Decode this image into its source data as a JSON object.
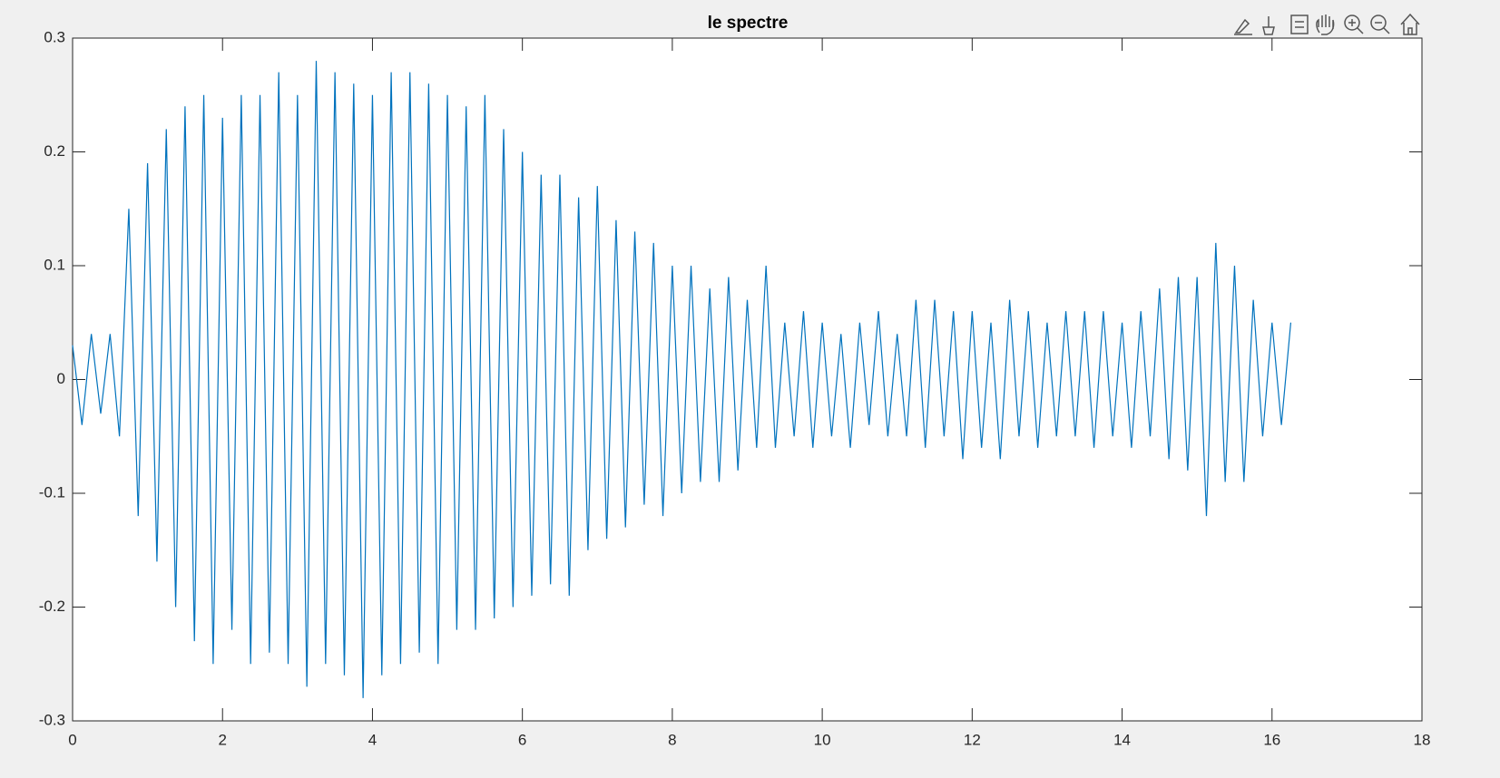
{
  "chart_data": {
    "type": "line",
    "title": "le spectre",
    "color": "#0072bd",
    "x": [
      0,
      0.125,
      0.25,
      0.375,
      0.5,
      0.625,
      0.75,
      0.875,
      1,
      1.125,
      1.25,
      1.375,
      1.5,
      1.625,
      1.75,
      1.875,
      2,
      2.125,
      2.25,
      2.375,
      2.5,
      2.625,
      2.75,
      2.875,
      3,
      3.125,
      3.25,
      3.375,
      3.5,
      3.625,
      3.75,
      3.875,
      4,
      4.125,
      4.25,
      4.375,
      4.5,
      4.625,
      4.75,
      4.875,
      5,
      5.125,
      5.25,
      5.375,
      5.5,
      5.625,
      5.75,
      5.875,
      6,
      6.125,
      6.25,
      6.375,
      6.5,
      6.625,
      6.75,
      6.875,
      7,
      7.125,
      7.25,
      7.375,
      7.5,
      7.625,
      7.75,
      7.875,
      8,
      8.125,
      8.25,
      8.375,
      8.5,
      8.625,
      8.75,
      8.875,
      9,
      9.125,
      9.25,
      9.375,
      9.5,
      9.625,
      9.75,
      9.875,
      10,
      10.125,
      10.25,
      10.375,
      10.5,
      10.625,
      10.75,
      10.875,
      11,
      11.125,
      11.25,
      11.375,
      11.5,
      11.625,
      11.75,
      11.875,
      12,
      12.125,
      12.25,
      12.375,
      12.5,
      12.625,
      12.75,
      12.875,
      13,
      13.125,
      13.25,
      13.375,
      13.5,
      13.625,
      13.75,
      13.875,
      14,
      14.125,
      14.25,
      14.375,
      14.5,
      14.625,
      14.75,
      14.875,
      15,
      15.125,
      15.25,
      15.375,
      15.5,
      15.625,
      15.75,
      15.875,
      16,
      16.125,
      16.25
    ],
    "values": [
      0.03,
      -0.04,
      0.04,
      -0.03,
      0.04,
      -0.05,
      0.15,
      -0.12,
      0.19,
      -0.16,
      0.22,
      -0.2,
      0.24,
      -0.23,
      0.25,
      -0.25,
      0.23,
      -0.22,
      0.25,
      -0.25,
      0.25,
      -0.24,
      0.27,
      -0.25,
      0.25,
      -0.27,
      0.28,
      -0.25,
      0.27,
      -0.26,
      0.26,
      -0.28,
      0.25,
      -0.26,
      0.27,
      -0.25,
      0.27,
      -0.24,
      0.26,
      -0.25,
      0.25,
      -0.22,
      0.24,
      -0.22,
      0.25,
      -0.21,
      0.22,
      -0.2,
      0.2,
      -0.19,
      0.18,
      -0.18,
      0.18,
      -0.19,
      0.16,
      -0.15,
      0.17,
      -0.14,
      0.14,
      -0.13,
      0.13,
      -0.11,
      0.12,
      -0.12,
      0.1,
      -0.1,
      0.1,
      -0.09,
      0.08,
      -0.09,
      0.09,
      -0.08,
      0.07,
      -0.06,
      0.1,
      -0.06,
      0.05,
      -0.05,
      0.06,
      -0.06,
      0.05,
      -0.05,
      0.04,
      -0.06,
      0.05,
      -0.04,
      0.06,
      -0.05,
      0.04,
      -0.05,
      0.07,
      -0.06,
      0.07,
      -0.05,
      0.06,
      -0.07,
      0.06,
      -0.06,
      0.05,
      -0.07,
      0.07,
      -0.05,
      0.06,
      -0.06,
      0.05,
      -0.05,
      0.06,
      -0.05,
      0.06,
      -0.06,
      0.06,
      -0.05,
      0.05,
      -0.06,
      0.06,
      -0.05,
      0.08,
      -0.07,
      0.09,
      -0.08,
      0.09,
      -0.12,
      0.12,
      -0.09,
      0.1,
      -0.09,
      0.07,
      -0.05,
      0.05,
      -0.04,
      0.05
    ],
    "xlim": [
      0,
      18
    ],
    "xticks": [
      0,
      2,
      4,
      6,
      8,
      10,
      12,
      14,
      16,
      18
    ],
    "ylim": [
      -0.3,
      0.3
    ],
    "yticks": [
      -0.3,
      -0.2,
      -0.1,
      0,
      0.1,
      0.2,
      0.3
    ]
  }
}
